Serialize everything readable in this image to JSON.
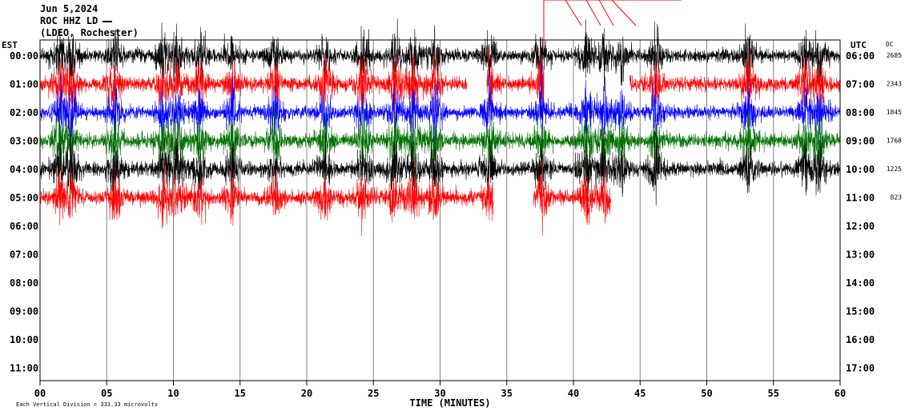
{
  "header": {
    "date": "Jun 5,2024",
    "station": "ROC HHZ LD",
    "network": "(LDEO, Rochester)"
  },
  "colors": {
    "trace": [
      "#000000",
      "#ff0000",
      "#0000ff",
      "#007000"
    ],
    "grid": "#808080",
    "frame": "#000000"
  },
  "chart_data": {
    "type": "line",
    "chart_kind": "helicorder",
    "left_axis_label": "EST",
    "right_axis_label": "UTC",
    "dc_label": "DC",
    "xlabel": "TIME (MINUTES)",
    "xlim": [
      0,
      60
    ],
    "x_ticks": [
      0,
      5,
      10,
      15,
      20,
      25,
      30,
      35,
      40,
      45,
      50,
      55,
      60
    ],
    "x_tick_labels": [
      "00",
      "05",
      "10",
      "15",
      "20",
      "25",
      "30",
      "35",
      "40",
      "45",
      "50",
      "55",
      "60"
    ],
    "vertical_grid_minutes": [
      5,
      10,
      15,
      20,
      25,
      30,
      35,
      40,
      45,
      50,
      55
    ],
    "rows_est": [
      "00:00",
      "01:00",
      "02:00",
      "03:00",
      "04:00",
      "05:00",
      "06:00",
      "07:00",
      "08:00",
      "09:00",
      "10:00",
      "11:00"
    ],
    "rows_utc": [
      "06:00",
      "07:00",
      "08:00",
      "09:00",
      "10:00",
      "11:00",
      "12:00",
      "13:00",
      "14:00",
      "15:00",
      "16:00",
      "17:00"
    ],
    "dc_offsets": [
      "2685",
      "2343",
      "1845",
      "1768",
      "1225",
      "823",
      "",
      "",
      "",
      "",
      "",
      ""
    ],
    "scale_note": "Each Vertical Division = 333.33 microvolts",
    "series": [
      {
        "row": 0,
        "color": "#000000",
        "start_min": 0,
        "end_min": 60,
        "rms": 0.2,
        "gaps": []
      },
      {
        "row": 1,
        "color": "#ff0000",
        "start_min": 0,
        "end_min": 60,
        "rms": 0.22,
        "gaps": [
          [
            32,
            33.5
          ],
          [
            37.8,
            44.2
          ]
        ]
      },
      {
        "row": 2,
        "color": "#0000ff",
        "start_min": 0,
        "end_min": 60,
        "rms": 0.2,
        "gaps": []
      },
      {
        "row": 3,
        "color": "#007000",
        "start_min": 0,
        "end_min": 60,
        "rms": 0.22,
        "gaps": []
      },
      {
        "row": 4,
        "color": "#000000",
        "start_min": 0,
        "end_min": 60,
        "rms": 0.22,
        "gaps": []
      },
      {
        "row": 5,
        "color": "#ff0000",
        "start_min": 0,
        "end_min": 42.8,
        "rms": 0.22,
        "gaps": [
          [
            34,
            37
          ]
        ]
      }
    ],
    "events_min": [
      1.5,
      2.4,
      5.6,
      9.2,
      10.3,
      12.0,
      14.4,
      17.6,
      21.4,
      24.2,
      26.6,
      28.0,
      29.6,
      33.7,
      37.6,
      41.0,
      42.3,
      43.6,
      46.2,
      53.1,
      57.4,
      58.5
    ]
  }
}
